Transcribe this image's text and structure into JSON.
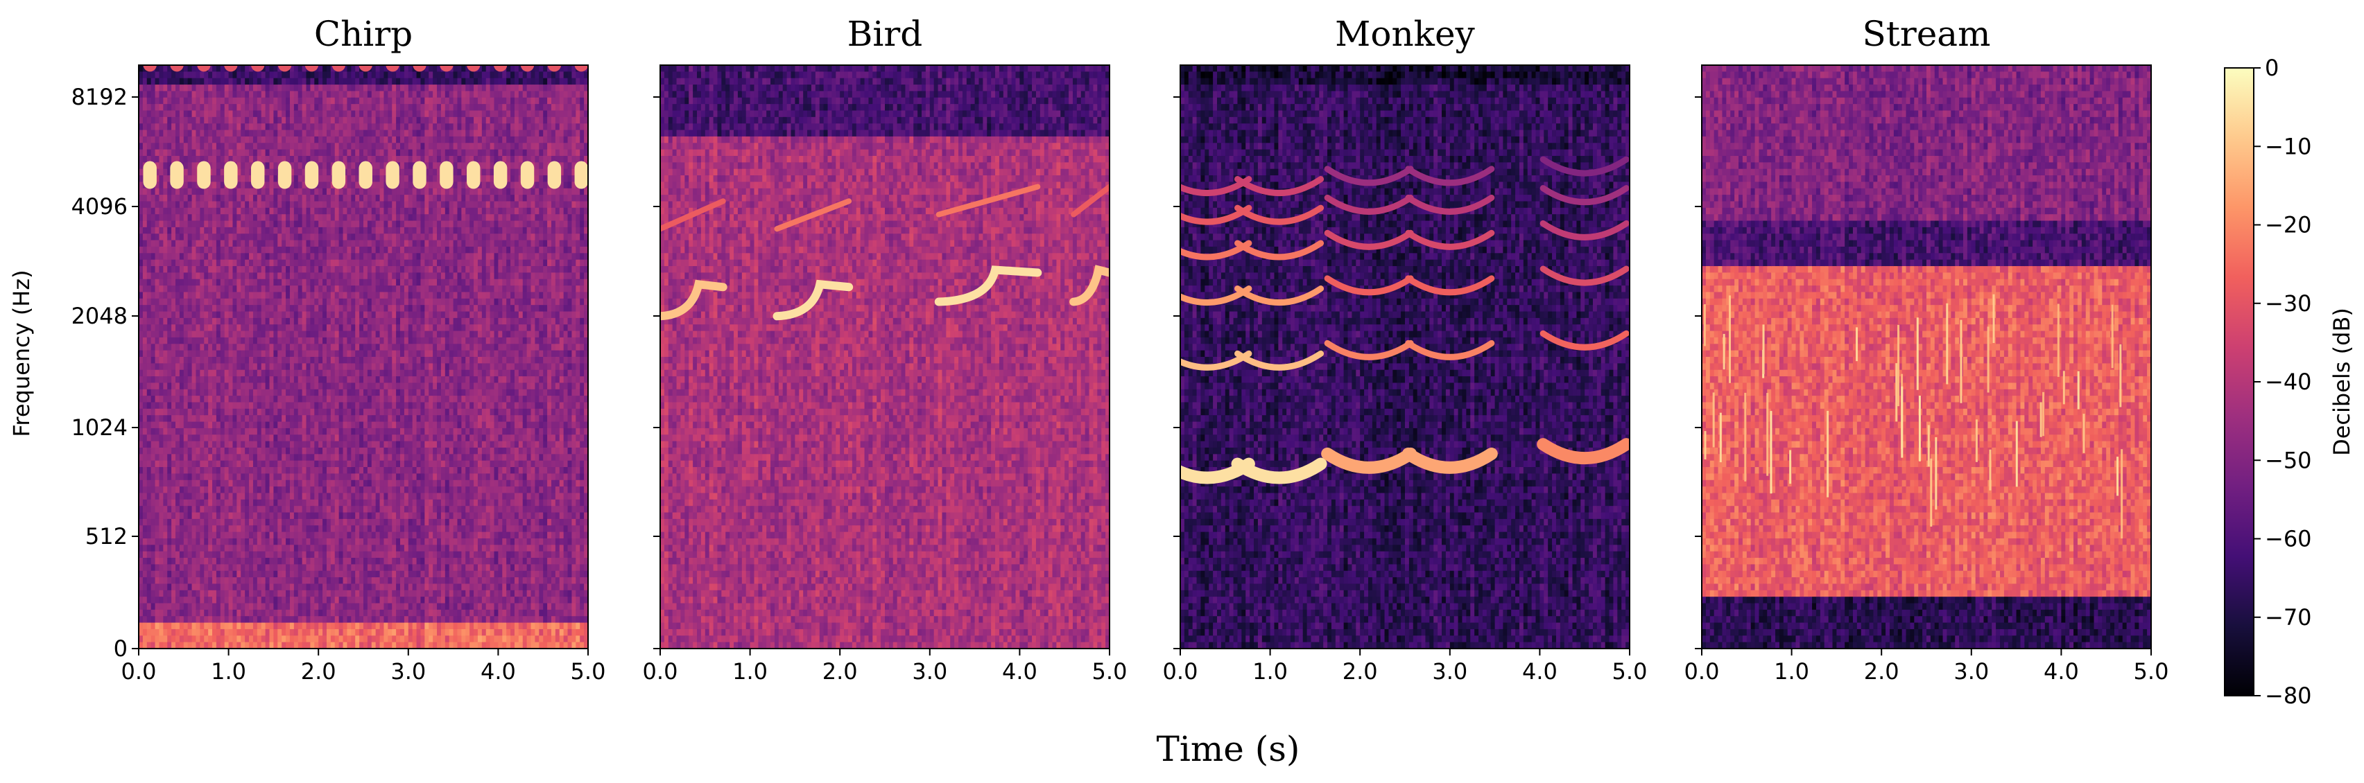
{
  "chart_data": [
    {
      "type": "heatmap",
      "title": "Chirp",
      "xlabel": "Time (s)",
      "ylabel": "Frequency (Hz)",
      "xlim": [
        0,
        5
      ],
      "xticks": [
        0,
        1,
        2,
        3,
        4,
        5
      ],
      "xtick_labels": [
        "0.0",
        "1.0",
        "2.0",
        "3.0",
        "4.0",
        "5.0"
      ],
      "yticks": [
        0,
        512,
        1024,
        2048,
        4096,
        8192
      ],
      "ytick_labels": [
        "0",
        "512",
        "1024",
        "2048",
        "4096",
        "8192"
      ],
      "y_scale": "log2 (mel-like)",
      "features": [
        {
          "kind": "periodic_bursts",
          "freq_hz": 5000,
          "period_s": 0.3,
          "level_db": -5
        },
        {
          "kind": "periodic_bursts",
          "freq_hz": 10500,
          "period_s": 0.3,
          "level_db": -30
        },
        {
          "kind": "background",
          "level_db": -50
        }
      ]
    },
    {
      "type": "heatmap",
      "title": "Bird",
      "xlim": [
        0,
        5
      ],
      "xticks": [
        0,
        1,
        2,
        3,
        4,
        5
      ],
      "xtick_labels": [
        "0.0",
        "1.0",
        "2.0",
        "3.0",
        "4.0",
        "5.0"
      ],
      "y_scale": "log2 (mel-like)",
      "features": [
        {
          "kind": "call",
          "t_start": 0.0,
          "t_end": 0.7,
          "freq_hz": 2100,
          "level_db": -10
        },
        {
          "kind": "call",
          "t_start": 1.3,
          "t_end": 2.1,
          "freq_hz": 2100,
          "level_db": -5
        },
        {
          "kind": "call",
          "t_start": 3.1,
          "t_end": 4.2,
          "freq_hz": 2300,
          "level_db": -5
        },
        {
          "kind": "call",
          "t_start": 4.6,
          "t_end": 5.0,
          "freq_hz": 2300,
          "level_db": -10
        },
        {
          "kind": "background",
          "level_db": -40
        }
      ]
    },
    {
      "type": "heatmap",
      "title": "Monkey",
      "xlim": [
        0,
        5
      ],
      "xticks": [
        0,
        1,
        2,
        3,
        4,
        5
      ],
      "xtick_labels": [
        "0.0",
        "1.0",
        "2.0",
        "3.0",
        "4.0",
        "5.0"
      ],
      "y_scale": "log2 (mel-like)",
      "features": [
        {
          "kind": "harmonic_call",
          "t_center": 0.3,
          "f0_hz": 750,
          "level_db": -5
        },
        {
          "kind": "harmonic_call",
          "t_center": 1.1,
          "f0_hz": 750,
          "level_db": -5
        },
        {
          "kind": "harmonic_call",
          "t_center": 2.1,
          "f0_hz": 800,
          "level_db": -15
        },
        {
          "kind": "harmonic_call",
          "t_center": 3.0,
          "f0_hz": 800,
          "level_db": -15
        },
        {
          "kind": "harmonic_call",
          "t_center": 4.5,
          "f0_hz": 850,
          "level_db": -20
        },
        {
          "kind": "background",
          "level_db": -65
        }
      ]
    },
    {
      "type": "heatmap",
      "title": "Stream",
      "xlim": [
        0,
        5
      ],
      "xticks": [
        0,
        1,
        2,
        3,
        4,
        5
      ],
      "xtick_labels": [
        "0.0",
        "1.0",
        "2.0",
        "3.0",
        "4.0",
        "5.0"
      ],
      "y_scale": "log2 (mel-like)",
      "features": [
        {
          "kind": "broadband_noise",
          "f_low_hz": 300,
          "f_high_hz": 2500,
          "level_db": -25
        },
        {
          "kind": "broadband_noise",
          "f_low_hz": 0,
          "f_high_hz": 250,
          "level_db": -65
        },
        {
          "kind": "broadband_noise",
          "f_low_hz": 2500,
          "f_high_hz": 11000,
          "level_db": -50
        }
      ]
    }
  ],
  "colorbar": {
    "label": "Decibels (dB)",
    "range_db": [
      -80,
      0
    ],
    "ticks": [
      0,
      -10,
      -20,
      -30,
      -40,
      -50,
      -60,
      -70,
      -80
    ],
    "tick_labels": [
      "0",
      "−10",
      "−20",
      "−30",
      "−40",
      "−50",
      "−60",
      "−70",
      "−80"
    ],
    "colormap": "magma",
    "colormap_stops": [
      "#000004",
      "#180f3d",
      "#440f76",
      "#721f81",
      "#9e2f7f",
      "#cd4071",
      "#f1605d",
      "#fd9668",
      "#feca8d",
      "#fcfdbf"
    ]
  },
  "shared_xlabel": "Time (s)"
}
